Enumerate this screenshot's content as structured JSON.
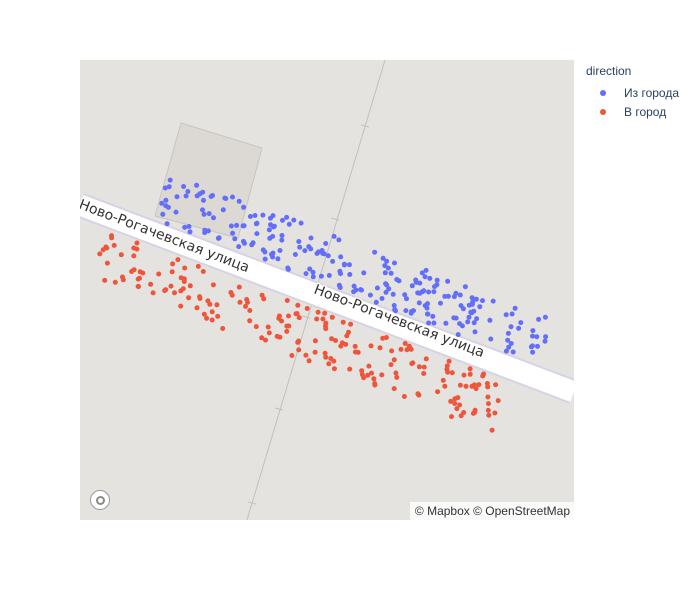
{
  "map": {
    "street_labels": [
      "Ново-Рогачевская улица",
      "Ново-Рогачевская улица"
    ],
    "attribution": "© Mapbox © OpenStreetMap",
    "logo_icon": "mapbox-logo-icon"
  },
  "legend": {
    "title": "direction",
    "items": [
      {
        "label": "Из города",
        "color": "#636efa"
      },
      {
        "label": "В город",
        "color": "#ef553b"
      }
    ]
  },
  "colors": {
    "land": "#e5e3df",
    "road": "#ffffff",
    "road_edge": "#d6d3e4",
    "building": "#dcd8d4",
    "railway": "#c2c0bc"
  }
}
